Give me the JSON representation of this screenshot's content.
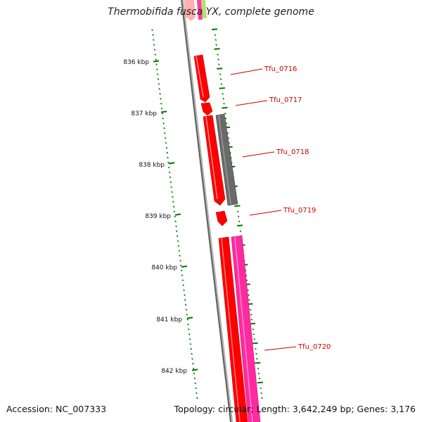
{
  "header": {
    "title": "Thermobifida fusca YX, complete genome"
  },
  "footer": {
    "accession": "Accession: NC_007333",
    "summary": "Topology: circular; Length: 3,642,249 bp; Genes: 3,176"
  },
  "ruler": {
    "ticks": [
      "836 kbp",
      "837 kbp",
      "838 kbp",
      "839 kbp",
      "840 kbp",
      "841 kbp",
      "842 kbp"
    ]
  },
  "genes": [
    {
      "label": "Tfu_0716",
      "color": "#ff0000"
    },
    {
      "label": "Tfu_0717",
      "color": "#ff0000"
    },
    {
      "label": "Tfu_0718",
      "color": "#666666"
    },
    {
      "label": "Tfu_0719",
      "color": "#ff0000"
    },
    {
      "label": "Tfu_0720",
      "color": "#ff0000"
    }
  ],
  "colors": {
    "ruler": "#007700",
    "backbone": "#808080",
    "gene_red": "#ff0000",
    "gene_gray": "#666666",
    "gene_pink": "#ff2aa0",
    "label": "#cc0000"
  }
}
